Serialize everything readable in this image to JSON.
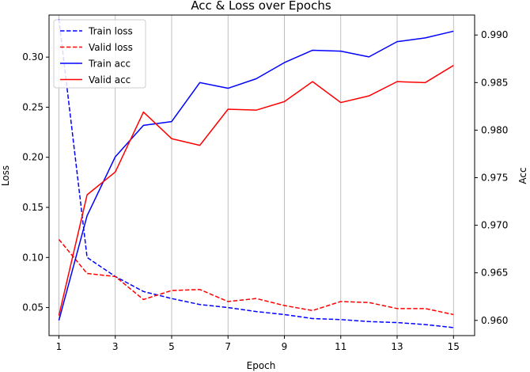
{
  "chart_data": {
    "type": "line",
    "title": "Acc & Loss over Epochs",
    "xlabel": "Epoch",
    "ylabel": "Loss",
    "y2label": "Acc",
    "grid": "vertical",
    "legend_position": "top-left",
    "x": [
      1,
      2,
      3,
      4,
      5,
      6,
      7,
      8,
      9,
      10,
      11,
      12,
      13,
      14,
      15
    ],
    "xticks": [
      1,
      3,
      5,
      7,
      9,
      11,
      13,
      15
    ],
    "xlim": [
      0.65,
      15.75
    ],
    "ylim": [
      0.022,
      0.342
    ],
    "yticks": [
      0.05,
      0.1,
      0.15,
      0.2,
      0.25,
      0.3
    ],
    "y2lim": [
      0.9584,
      0.9921
    ],
    "y2ticks": [
      0.96,
      0.965,
      0.97,
      0.975,
      0.98,
      0.985,
      0.99
    ],
    "series": [
      {
        "name": "Train loss",
        "axis": "left",
        "color": "#0000ff",
        "dash": true,
        "values": [
          0.338,
          0.1,
          0.081,
          0.066,
          0.059,
          0.053,
          0.05,
          0.046,
          0.043,
          0.039,
          0.038,
          0.036,
          0.035,
          0.033,
          0.03
        ]
      },
      {
        "name": "Valid loss",
        "axis": "left",
        "color": "#ff0000",
        "dash": true,
        "values": [
          0.118,
          0.084,
          0.081,
          0.058,
          0.067,
          0.068,
          0.056,
          0.059,
          0.052,
          0.047,
          0.056,
          0.055,
          0.049,
          0.049,
          0.043
        ]
      },
      {
        "name": "Train acc",
        "axis": "right",
        "color": "#0000ff",
        "dash": false,
        "values": [
          0.96,
          0.971,
          0.9772,
          0.9805,
          0.9809,
          0.985,
          0.9844,
          0.9854,
          0.9871,
          0.9884,
          0.9883,
          0.9877,
          0.9893,
          0.9897,
          0.9904
        ]
      },
      {
        "name": "Valid acc",
        "axis": "right",
        "color": "#ff0000",
        "dash": false,
        "values": [
          0.9605,
          0.9732,
          0.9756,
          0.9819,
          0.9791,
          0.9784,
          0.9822,
          0.9821,
          0.983,
          0.9851,
          0.9829,
          0.9836,
          0.9851,
          0.985,
          0.9868
        ]
      }
    ]
  }
}
